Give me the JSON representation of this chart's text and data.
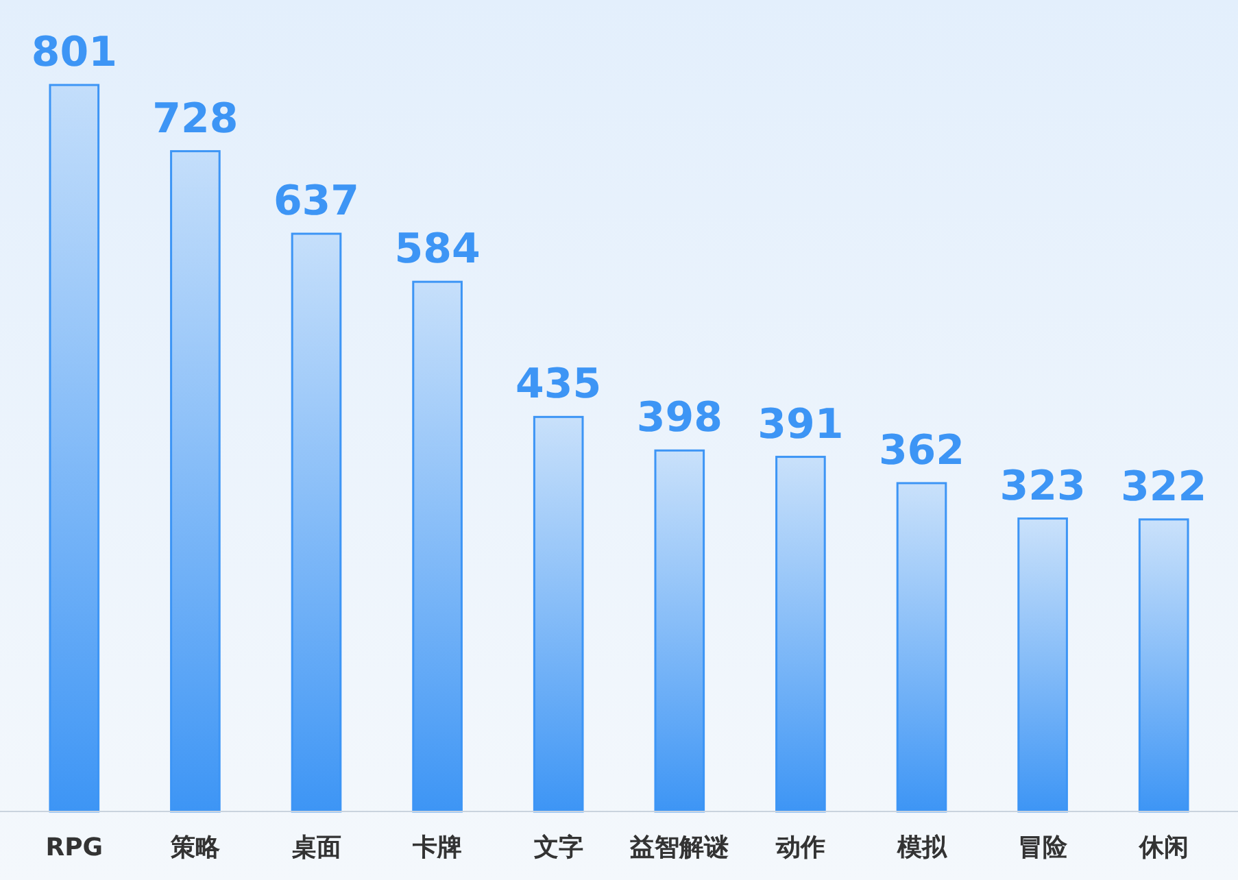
{
  "chart_data": {
    "type": "bar",
    "categories": [
      "RPG",
      "策略",
      "桌面",
      "卡牌",
      "文字",
      "益智解谜",
      "动作",
      "模拟",
      "冒险",
      "休闲"
    ],
    "values": [
      801,
      728,
      637,
      584,
      435,
      398,
      391,
      362,
      323,
      322
    ],
    "color": "#3d95f5",
    "data_labels": true
  }
}
